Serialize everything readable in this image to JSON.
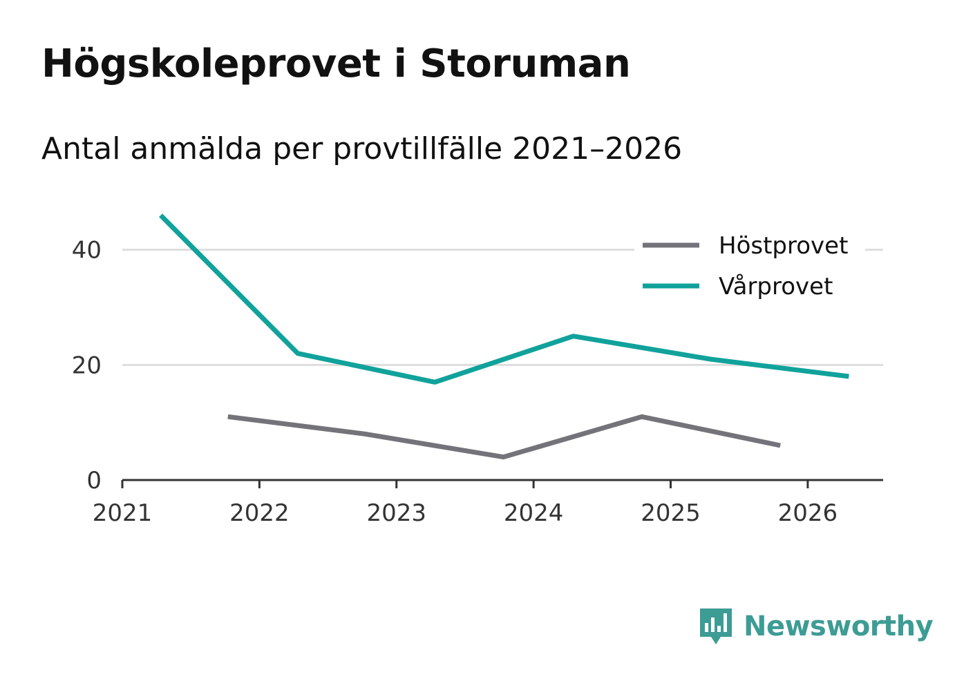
{
  "title": "Högskoleprovet i Storuman",
  "subtitle": "Antal anmälda per provtillfälle 2021–2026",
  "brand": "Newsworthy",
  "colors": {
    "hostprovet": "#74737a",
    "varprovet": "#10a29b",
    "grid": "#dddddd",
    "axis": "#333333",
    "brand": "#3d9c94"
  },
  "chart_data": {
    "type": "line",
    "title": "Högskoleprovet i Storuman",
    "subtitle": "Antal anmälda per provtillfälle 2021–2026",
    "xlabel": "",
    "ylabel": "",
    "xlim": [
      2021,
      2026.55
    ],
    "ylim": [
      0,
      45
    ],
    "x_ticks": [
      2021,
      2022,
      2023,
      2024,
      2025,
      2026
    ],
    "y_ticks": [
      0,
      20,
      40
    ],
    "gridlines": "horizontal",
    "legend_position": "top-right",
    "series": [
      {
        "name": "Höstprovet",
        "color": "#74737a",
        "x": [
          2021.77,
          2022.77,
          2023.78,
          2024.79,
          2025.8
        ],
        "y": [
          11,
          8,
          4,
          11,
          6
        ]
      },
      {
        "name": "Vårprovet",
        "color": "#10a29b",
        "x": [
          2021.28,
          2022.28,
          2023.28,
          2024.29,
          2025.29,
          2026.3
        ],
        "y": [
          46,
          22,
          17,
          25,
          21,
          18
        ]
      }
    ]
  }
}
